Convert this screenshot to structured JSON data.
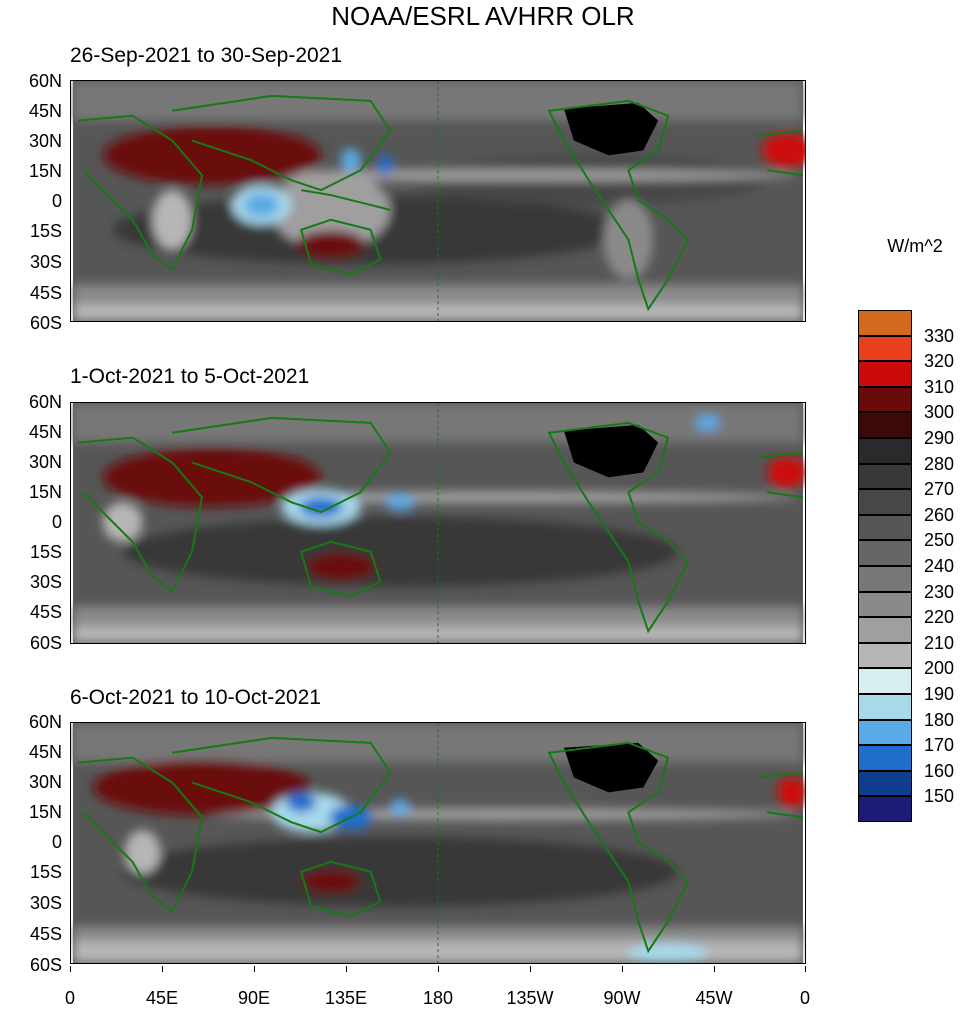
{
  "title": "NOAA/ESRL AVHRR OLR",
  "units_label": "W/m^2",
  "panels": [
    {
      "title": "26-Sep-2021 to 30-Sep-2021"
    },
    {
      "title": "1-Oct-2021 to 5-Oct-2021"
    },
    {
      "title": "6-Oct-2021 to 10-Oct-2021"
    }
  ],
  "lat_labels": [
    "60N",
    "45N",
    "30N",
    "15N",
    "0",
    "15S",
    "30S",
    "45S",
    "60S"
  ],
  "lon_labels": [
    "0",
    "45E",
    "90E",
    "135E",
    "180",
    "135W",
    "90W",
    "45W",
    "0"
  ],
  "colorbar": {
    "labels": [
      "330",
      "320",
      "310",
      "300",
      "290",
      "280",
      "270",
      "260",
      "250",
      "240",
      "230",
      "220",
      "210",
      "200",
      "190",
      "180",
      "170",
      "160",
      "150"
    ],
    "colors_top_to_bottom": [
      "#d2691e",
      "#e8401c",
      "#cc0a0a",
      "#6b0a0a",
      "#3d0808",
      "#2a2a2a",
      "#383838",
      "#474747",
      "#565656",
      "#666666",
      "#777777",
      "#8a8a8a",
      "#9f9f9f",
      "#b6b6b6",
      "#d6eef0",
      "#a9d8ea",
      "#5aaae6",
      "#1e6fcc",
      "#0f3e8e",
      "#1c1c78"
    ]
  },
  "colors": {
    "coastline": "#157a15",
    "land_mask": "#000000"
  }
}
